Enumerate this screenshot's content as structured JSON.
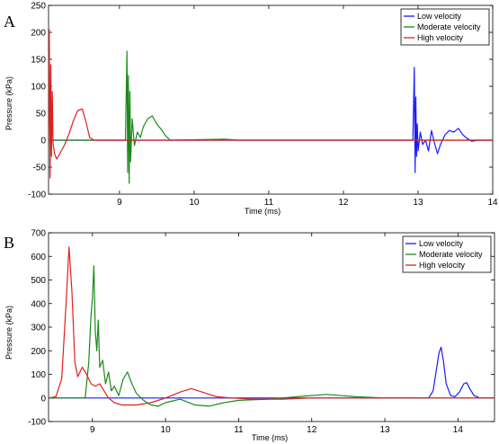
{
  "chart_data": [
    {
      "panel": "A",
      "type": "line",
      "xlabel": "Time (ms)",
      "ylabel": "Pressure (kPa)",
      "xlim": [
        8.05,
        14
      ],
      "ylim": [
        -100,
        250
      ],
      "xticks": [
        9,
        10,
        11,
        12,
        13,
        14
      ],
      "yticks": [
        -100,
        -50,
        0,
        50,
        100,
        150,
        200,
        250
      ],
      "legend_position": "top-right",
      "series": [
        {
          "name": "Low velocity",
          "color": "#1a1aff",
          "points": [
            [
              8.05,
              0
            ],
            [
              12.9,
              0
            ],
            [
              12.93,
              0
            ],
            [
              12.95,
              135
            ],
            [
              12.96,
              -60
            ],
            [
              12.97,
              80
            ],
            [
              12.98,
              -30
            ],
            [
              12.99,
              30
            ],
            [
              13.0,
              -20
            ],
            [
              13.03,
              15
            ],
            [
              13.06,
              -8
            ],
            [
              13.1,
              0
            ],
            [
              13.14,
              -20
            ],
            [
              13.18,
              18
            ],
            [
              13.22,
              -5
            ],
            [
              13.26,
              -25
            ],
            [
              13.3,
              -8
            ],
            [
              13.36,
              10
            ],
            [
              13.42,
              18
            ],
            [
              13.48,
              15
            ],
            [
              13.54,
              22
            ],
            [
              13.6,
              10
            ],
            [
              13.66,
              3
            ],
            [
              13.72,
              -2
            ],
            [
              13.8,
              0
            ],
            [
              14,
              0
            ]
          ]
        },
        {
          "name": "Moderate velocity",
          "color": "#1a8a1a",
          "points": [
            [
              8.05,
              0
            ],
            [
              9.08,
              0
            ],
            [
              9.1,
              165
            ],
            [
              9.11,
              -60
            ],
            [
              9.12,
              120
            ],
            [
              9.13,
              -80
            ],
            [
              9.14,
              90
            ],
            [
              9.15,
              -40
            ],
            [
              9.17,
              40
            ],
            [
              9.2,
              -10
            ],
            [
              9.24,
              15
            ],
            [
              9.28,
              5
            ],
            [
              9.32,
              25
            ],
            [
              9.38,
              40
            ],
            [
              9.44,
              45
            ],
            [
              9.5,
              30
            ],
            [
              9.56,
              20
            ],
            [
              9.62,
              8
            ],
            [
              9.68,
              0
            ],
            [
              10.4,
              2
            ],
            [
              10.6,
              0
            ],
            [
              14,
              0
            ]
          ]
        },
        {
          "name": "High velocity",
          "color": "#e02020",
          "points": [
            [
              8.05,
              0
            ],
            [
              8.06,
              205
            ],
            [
              8.07,
              -70
            ],
            [
              8.08,
              140
            ],
            [
              8.09,
              -30
            ],
            [
              8.1,
              90
            ],
            [
              8.11,
              -5
            ],
            [
              8.13,
              -25
            ],
            [
              8.16,
              -35
            ],
            [
              8.2,
              -25
            ],
            [
              8.26,
              -10
            ],
            [
              8.32,
              10
            ],
            [
              8.38,
              35
            ],
            [
              8.44,
              55
            ],
            [
              8.5,
              58
            ],
            [
              8.55,
              35
            ],
            [
              8.6,
              5
            ],
            [
              8.66,
              0
            ],
            [
              14,
              0
            ]
          ]
        }
      ]
    },
    {
      "panel": "B",
      "type": "line",
      "xlabel": "Time (ms)",
      "ylabel": "Pressure (kPa)",
      "xlim": [
        8.4,
        14.5
      ],
      "ylim": [
        -100,
        700
      ],
      "xticks": [
        9,
        10,
        11,
        12,
        13,
        14
      ],
      "yticks": [
        -100,
        0,
        100,
        200,
        300,
        400,
        500,
        600,
        700
      ],
      "legend_position": "top-right",
      "series": [
        {
          "name": "Low velocity",
          "color": "#1a1aff",
          "points": [
            [
              8.4,
              0
            ],
            [
              13.6,
              0
            ],
            [
              13.66,
              30
            ],
            [
              13.7,
              110
            ],
            [
              13.74,
              190
            ],
            [
              13.77,
              215
            ],
            [
              13.8,
              160
            ],
            [
              13.84,
              60
            ],
            [
              13.9,
              10
            ],
            [
              13.96,
              5
            ],
            [
              14.02,
              25
            ],
            [
              14.08,
              60
            ],
            [
              14.12,
              65
            ],
            [
              14.16,
              40
            ],
            [
              14.22,
              10
            ],
            [
              14.3,
              0
            ],
            [
              14.5,
              0
            ]
          ]
        },
        {
          "name": "Moderate velocity",
          "color": "#1a8a1a",
          "points": [
            [
              8.4,
              0
            ],
            [
              8.9,
              0
            ],
            [
              8.95,
              150
            ],
            [
              8.98,
              350
            ],
            [
              9.0,
              420
            ],
            [
              9.02,
              560
            ],
            [
              9.04,
              280
            ],
            [
              9.06,
              200
            ],
            [
              9.08,
              330
            ],
            [
              9.1,
              130
            ],
            [
              9.14,
              160
            ],
            [
              9.18,
              60
            ],
            [
              9.22,
              110
            ],
            [
              9.26,
              30
            ],
            [
              9.3,
              50
            ],
            [
              9.36,
              10
            ],
            [
              9.42,
              80
            ],
            [
              9.48,
              110
            ],
            [
              9.54,
              60
            ],
            [
              9.6,
              20
            ],
            [
              9.7,
              -10
            ],
            [
              9.8,
              -30
            ],
            [
              9.9,
              -35
            ],
            [
              10.0,
              -20
            ],
            [
              10.2,
              -5
            ],
            [
              10.4,
              -30
            ],
            [
              10.6,
              -35
            ],
            [
              10.8,
              -20
            ],
            [
              11.0,
              -10
            ],
            [
              11.4,
              -5
            ],
            [
              11.8,
              5
            ],
            [
              12.2,
              15
            ],
            [
              12.6,
              5
            ],
            [
              13.0,
              0
            ],
            [
              14.5,
              0
            ]
          ]
        },
        {
          "name": "High velocity",
          "color": "#e02020",
          "points": [
            [
              8.4,
              0
            ],
            [
              8.5,
              5
            ],
            [
              8.58,
              80
            ],
            [
              8.64,
              400
            ],
            [
              8.68,
              640
            ],
            [
              8.72,
              450
            ],
            [
              8.76,
              150
            ],
            [
              8.8,
              90
            ],
            [
              8.86,
              130
            ],
            [
              8.92,
              100
            ],
            [
              8.98,
              60
            ],
            [
              9.04,
              50
            ],
            [
              9.1,
              60
            ],
            [
              9.16,
              30
            ],
            [
              9.22,
              0
            ],
            [
              9.3,
              -20
            ],
            [
              9.4,
              -30
            ],
            [
              9.6,
              -30
            ],
            [
              9.8,
              -20
            ],
            [
              10.0,
              0
            ],
            [
              10.2,
              25
            ],
            [
              10.35,
              40
            ],
            [
              10.5,
              25
            ],
            [
              10.7,
              5
            ],
            [
              10.9,
              0
            ],
            [
              11.2,
              -5
            ],
            [
              11.6,
              -5
            ],
            [
              12.0,
              0
            ],
            [
              14.5,
              0
            ]
          ]
        }
      ]
    }
  ]
}
